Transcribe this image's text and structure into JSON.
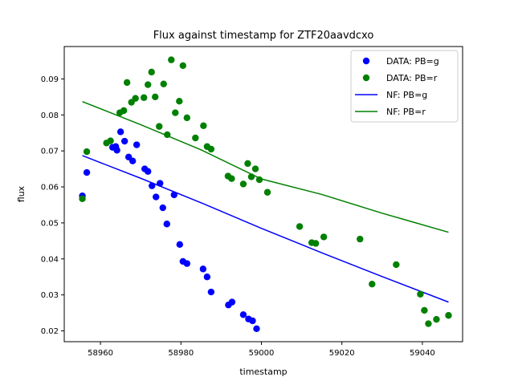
{
  "chart_data": {
    "type": "scatter",
    "title": "Flux against timestamp for ZTF20aavdcxo",
    "xlabel": "timestamp",
    "ylabel": "flux",
    "xlim": [
      58951,
      59050
    ],
    "ylim": [
      0.017,
      0.099
    ],
    "xticks": [
      58960,
      58980,
      59000,
      59020,
      59040
    ],
    "yticks": [
      0.02,
      0.03,
      0.04,
      0.05,
      0.06,
      0.07,
      0.08,
      0.09
    ],
    "legend_placement": "top-right",
    "series": [
      {
        "name": "DATA: PB=g",
        "kind": "points",
        "color": "#0000ff",
        "points": [
          [
            58955.5,
            0.0575
          ],
          [
            58956.6,
            0.064
          ],
          [
            58963.0,
            0.071
          ],
          [
            58963.8,
            0.0712
          ],
          [
            58964.1,
            0.0702
          ],
          [
            58965.0,
            0.0753
          ],
          [
            58966.0,
            0.0727
          ],
          [
            58967.0,
            0.0683
          ],
          [
            58968.0,
            0.0672
          ],
          [
            58969.0,
            0.0717
          ],
          [
            58971.0,
            0.065
          ],
          [
            58971.8,
            0.0643
          ],
          [
            58972.8,
            0.0603
          ],
          [
            58973.8,
            0.0572
          ],
          [
            58974.8,
            0.061
          ],
          [
            58975.5,
            0.0542
          ],
          [
            58976.5,
            0.0497
          ],
          [
            58978.3,
            0.0578
          ],
          [
            58979.7,
            0.044
          ],
          [
            58980.5,
            0.0393
          ],
          [
            58981.5,
            0.0387
          ],
          [
            58985.5,
            0.0372
          ],
          [
            58986.5,
            0.035
          ],
          [
            58987.5,
            0.0308
          ],
          [
            58991.8,
            0.0272
          ],
          [
            58992.7,
            0.028
          ],
          [
            58995.5,
            0.0245
          ],
          [
            58996.8,
            0.0233
          ],
          [
            58997.8,
            0.0228
          ],
          [
            58998.8,
            0.0206
          ]
        ]
      },
      {
        "name": "DATA: PB=r",
        "kind": "points",
        "color": "#008000",
        "points": [
          [
            58955.5,
            0.0567
          ],
          [
            58956.6,
            0.0698
          ],
          [
            58961.5,
            0.0722
          ],
          [
            58962.5,
            0.0728
          ],
          [
            58964.8,
            0.0806
          ],
          [
            58965.8,
            0.0812
          ],
          [
            58966.6,
            0.089
          ],
          [
            58967.7,
            0.0835
          ],
          [
            58968.7,
            0.0846
          ],
          [
            58970.8,
            0.0848
          ],
          [
            58971.8,
            0.0884
          ],
          [
            58972.7,
            0.0919
          ],
          [
            58973.6,
            0.085
          ],
          [
            58974.6,
            0.0768
          ],
          [
            58975.7,
            0.0886
          ],
          [
            58976.6,
            0.0745
          ],
          [
            58977.6,
            0.0953
          ],
          [
            58978.6,
            0.0806
          ],
          [
            58979.6,
            0.0838
          ],
          [
            58980.5,
            0.0937
          ],
          [
            58981.5,
            0.0792
          ],
          [
            58983.6,
            0.0736
          ],
          [
            58985.6,
            0.077
          ],
          [
            58986.5,
            0.0712
          ],
          [
            58987.5,
            0.0705
          ],
          [
            58991.7,
            0.063
          ],
          [
            58992.6,
            0.0623
          ],
          [
            58995.5,
            0.0608
          ],
          [
            58996.6,
            0.0665
          ],
          [
            58997.5,
            0.0628
          ],
          [
            58998.5,
            0.065
          ],
          [
            58999.5,
            0.062
          ],
          [
            59001.5,
            0.0585
          ],
          [
            59009.5,
            0.049
          ],
          [
            59012.5,
            0.0445
          ],
          [
            59013.5,
            0.0443
          ],
          [
            59015.5,
            0.0461
          ],
          [
            59024.5,
            0.0455
          ],
          [
            59027.5,
            0.033
          ],
          [
            59033.5,
            0.0384
          ],
          [
            59039.5,
            0.0302
          ],
          [
            59040.5,
            0.0257
          ],
          [
            59041.5,
            0.022
          ],
          [
            59043.5,
            0.0232
          ],
          [
            59046.5,
            0.0243
          ]
        ]
      },
      {
        "name": "NF: PB=g",
        "kind": "line",
        "color": "#0000ff",
        "points": [
          [
            58955.5,
            0.0687
          ],
          [
            58970,
            0.0624
          ],
          [
            58985,
            0.0556
          ],
          [
            59000,
            0.0485
          ],
          [
            59015,
            0.0417
          ],
          [
            59030,
            0.0351
          ],
          [
            59046.5,
            0.028
          ]
        ]
      },
      {
        "name": "NF: PB=r",
        "kind": "line",
        "color": "#008000",
        "points": [
          [
            58955.5,
            0.0837
          ],
          [
            58970,
            0.0773
          ],
          [
            58985,
            0.0703
          ],
          [
            59000,
            0.0622
          ],
          [
            59015,
            0.0579
          ],
          [
            59030,
            0.0527
          ],
          [
            59046.5,
            0.0474
          ]
        ]
      }
    ]
  }
}
